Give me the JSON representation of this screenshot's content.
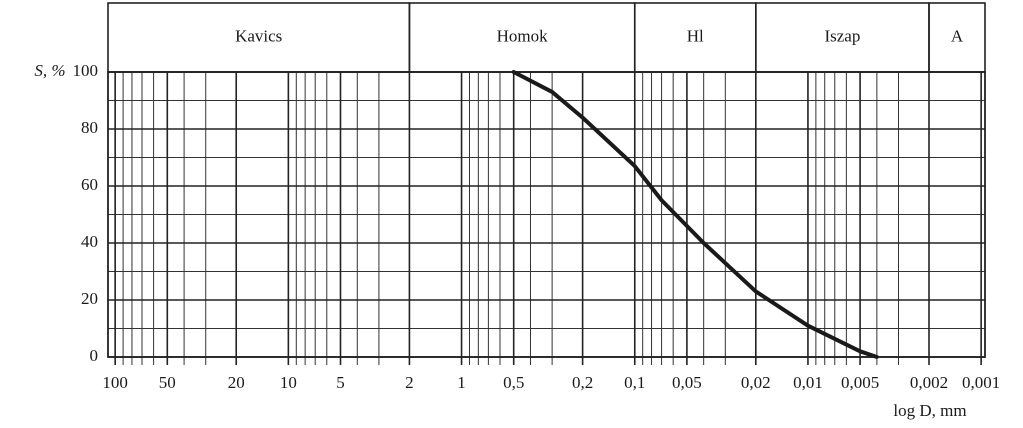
{
  "chart_data": {
    "type": "line",
    "x_label": "log D, mm",
    "y_label": "S, %",
    "x_scale": "log",
    "x_reversed": true,
    "xlim": [
      110,
      0.00095
    ],
    "ylim": [
      0,
      100
    ],
    "xticks": [
      100,
      50,
      20,
      10,
      5,
      2,
      1,
      {
        "value": 0.5,
        "label": "0,5"
      },
      {
        "value": 0.2,
        "label": "0,2"
      },
      {
        "value": 0.1,
        "label": "0,1"
      },
      {
        "value": 0.05,
        "label": "0,05"
      },
      {
        "value": 0.02,
        "label": "0,02"
      },
      {
        "value": 0.01,
        "label": "0,01"
      },
      {
        "value": 0.005,
        "label": "0,005"
      },
      {
        "value": 0.002,
        "label": "0,002"
      },
      {
        "value": 0.001,
        "label": "0,001"
      }
    ],
    "minor_xticks": [
      90,
      80,
      70,
      60,
      40,
      30,
      9,
      8,
      7,
      6,
      4,
      3,
      0.9,
      0.8,
      0.7,
      0.6,
      0.4,
      0.3,
      0.09,
      0.08,
      0.07,
      0.06,
      0.04,
      0.03,
      0.009,
      0.008,
      0.007,
      0.006,
      0.004,
      0.003
    ],
    "yticks": [
      0,
      20,
      40,
      60,
      80,
      100
    ],
    "minor_yticks": [
      10,
      30,
      50,
      70,
      90
    ],
    "grid": true,
    "zones": [
      {
        "label": "Kavics",
        "from": 110,
        "to": 2
      },
      {
        "label": "Homok",
        "from": 2,
        "to": 0.1
      },
      {
        "label": "Hl",
        "from": 0.1,
        "to": 0.02
      },
      {
        "label": "Iszap",
        "from": 0.02,
        "to": 0.002
      },
      {
        "label": "A",
        "from": 0.002,
        "to": 0.00095
      }
    ],
    "x": [
      0.5,
      0.3,
      0.2,
      0.1,
      0.07,
      0.04,
      0.02,
      0.01,
      0.005,
      0.004
    ],
    "series": [
      {
        "color": "#1a1a1a",
        "values": [
          100,
          93,
          84,
          67,
          55,
          40,
          23,
          11,
          2,
          0
        ]
      }
    ]
  }
}
